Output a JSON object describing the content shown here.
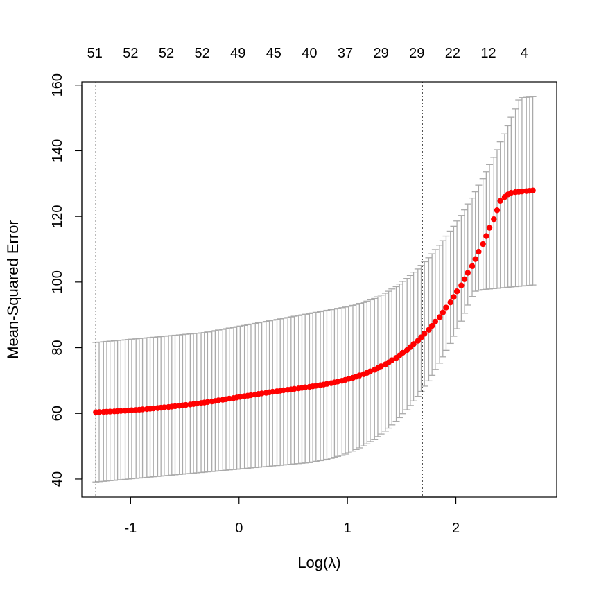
{
  "chart_data": {
    "type": "scatter",
    "title": "",
    "xlabel": "Log(λ)",
    "ylabel": "Mean-Squared Error",
    "xlim": [
      -1.45,
      2.93
    ],
    "ylim": [
      34.5,
      161
    ],
    "x_ticks": [
      -1,
      0,
      1,
      2
    ],
    "x_tick_labels": [
      "-1",
      "0",
      "1",
      "2"
    ],
    "y_ticks": [
      40,
      60,
      80,
      100,
      120,
      140,
      160
    ],
    "y_tick_labels": [
      "40",
      "60",
      "80",
      "100",
      "120",
      "140",
      "160"
    ],
    "top_axis": {
      "label": "",
      "ticks": [
        -1.33,
        -1.0,
        -0.67,
        -0.34,
        -0.01,
        0.32,
        0.65,
        0.98,
        1.31,
        1.64,
        1.97,
        2.3,
        2.63
      ],
      "tick_labels": [
        "51",
        "52",
        "52",
        "52",
        "49",
        "45",
        "40",
        "37",
        "29",
        "29",
        "22",
        "12",
        "4"
      ]
    },
    "reference_lines_x": [
      -1.32,
      1.69
    ],
    "point_color": "#ff0000",
    "errorbar_color": "#aaaaaa",
    "grid": false,
    "legend": "none",
    "series": [
      {
        "x": [
          -1.32,
          -1.29,
          -1.25,
          -1.22,
          -1.19,
          -1.15,
          -1.12,
          -1.09,
          -1.05,
          -1.02,
          -0.99,
          -0.95,
          -0.92,
          -0.89,
          -0.85,
          -0.82,
          -0.79,
          -0.75,
          -0.72,
          -0.69,
          -0.65,
          -0.62,
          -0.59,
          -0.55,
          -0.52,
          -0.49,
          -0.45,
          -0.42,
          -0.39,
          -0.35,
          -0.32,
          -0.29,
          -0.25,
          -0.22,
          -0.19,
          -0.15,
          -0.12,
          -0.09,
          -0.05,
          -0.02,
          0.01,
          0.05,
          0.08,
          0.11,
          0.15,
          0.18,
          0.21,
          0.25,
          0.28,
          0.31,
          0.35,
          0.38,
          0.41,
          0.45,
          0.48,
          0.51,
          0.55,
          0.58,
          0.61,
          0.65,
          0.68,
          0.71,
          0.75,
          0.78,
          0.81,
          0.85,
          0.88,
          0.91,
          0.95,
          0.98,
          1.01,
          1.05,
          1.08,
          1.11,
          1.15,
          1.18,
          1.21,
          1.25,
          1.28,
          1.31,
          1.35,
          1.38,
          1.41,
          1.45,
          1.48,
          1.51,
          1.55,
          1.58,
          1.61,
          1.65,
          1.68,
          1.71,
          1.75,
          1.78,
          1.81,
          1.85,
          1.88,
          1.91,
          1.95,
          1.98,
          2.01,
          2.05,
          2.08,
          2.11,
          2.15,
          2.18,
          2.21,
          2.25,
          2.28,
          2.31,
          2.35,
          2.38,
          2.41,
          2.45,
          2.48,
          2.51,
          2.55,
          2.58,
          2.61,
          2.65,
          2.68,
          2.71
        ],
        "y": [
          60.36,
          60.41,
          60.46,
          60.51,
          60.56,
          60.62,
          60.68,
          60.75,
          60.82,
          60.89,
          60.97,
          61.05,
          61.13,
          61.22,
          61.31,
          61.41,
          61.51,
          61.61,
          61.72,
          61.83,
          61.94,
          62.06,
          62.18,
          62.31,
          62.44,
          62.57,
          62.71,
          62.85,
          63.0,
          63.15,
          63.3,
          63.46,
          63.62,
          63.79,
          63.96,
          64.13,
          64.31,
          64.49,
          64.67,
          64.85,
          65.03,
          65.21,
          65.39,
          65.57,
          65.75,
          65.92,
          66.09,
          66.26,
          66.42,
          66.58,
          66.73,
          66.88,
          67.03,
          67.18,
          67.33,
          67.47,
          67.62,
          67.77,
          67.92,
          68.08,
          68.24,
          68.41,
          68.59,
          68.78,
          68.98,
          69.2,
          69.43,
          69.67,
          69.93,
          70.21,
          70.51,
          70.83,
          71.17,
          71.54,
          71.93,
          72.35,
          72.8,
          73.28,
          73.79,
          74.34,
          74.92,
          75.54,
          76.2,
          76.9,
          77.65,
          78.44,
          79.28,
          80.17,
          81.11,
          82.1,
          83.15,
          84.26,
          85.43,
          86.66,
          87.95,
          89.31,
          90.74,
          92.24,
          93.81,
          95.45,
          97.17,
          98.97,
          100.85,
          102.82,
          104.87,
          107.01,
          109.24,
          111.57,
          113.99,
          116.51,
          119.14,
          121.88,
          124.73,
          125.9,
          126.7,
          127.2,
          127.4,
          127.5,
          127.6,
          127.7,
          127.8,
          127.9
        ],
        "err_lower": [
          39.1,
          39.2,
          39.3,
          39.4,
          39.5,
          39.6,
          39.7,
          39.8,
          39.9,
          40.0,
          40.1,
          40.2,
          40.3,
          40.4,
          40.5,
          40.6,
          40.7,
          40.8,
          40.9,
          41.0,
          41.1,
          41.2,
          41.3,
          41.4,
          41.5,
          41.6,
          41.7,
          41.8,
          41.9,
          42.0,
          42.1,
          42.2,
          42.3,
          42.4,
          42.5,
          42.6,
          42.7,
          42.8,
          42.9,
          43.0,
          43.1,
          43.2,
          43.3,
          43.4,
          43.5,
          43.6,
          43.7,
          43.8,
          43.9,
          44.0,
          44.1,
          44.2,
          44.3,
          44.4,
          44.5,
          44.6,
          44.7,
          44.8,
          44.9,
          45.0,
          45.2,
          45.4,
          45.6,
          45.8,
          46.0,
          46.3,
          46.6,
          46.9,
          47.2,
          47.6,
          48.0,
          48.5,
          49.0,
          49.5,
          50.1,
          50.7,
          51.4,
          52.1,
          52.9,
          53.7,
          54.6,
          55.5,
          56.5,
          57.6,
          58.7,
          59.9,
          61.1,
          62.4,
          63.8,
          65.2,
          66.7,
          68.3,
          69.9,
          71.6,
          73.4,
          75.3,
          77.2,
          79.2,
          81.3,
          83.5,
          85.8,
          88.1,
          90.5,
          93.0,
          95.6,
          97.2,
          97.5,
          97.7,
          97.8,
          97.9,
          98.0,
          98.1,
          98.2,
          98.3,
          98.4,
          98.5,
          98.6,
          98.7,
          98.8,
          98.9,
          99.0,
          99.1
        ],
        "err_upper": [
          81.6,
          81.7,
          81.8,
          81.9,
          82.0,
          82.1,
          82.2,
          82.3,
          82.4,
          82.5,
          82.6,
          82.7,
          82.8,
          82.9,
          83.0,
          83.1,
          83.2,
          83.3,
          83.4,
          83.5,
          83.6,
          83.7,
          83.8,
          83.9,
          84.0,
          84.1,
          84.2,
          84.3,
          84.4,
          84.5,
          84.6,
          84.8,
          85.0,
          85.2,
          85.4,
          85.6,
          85.8,
          86.0,
          86.2,
          86.4,
          86.6,
          86.8,
          87.0,
          87.2,
          87.4,
          87.6,
          87.8,
          88.0,
          88.2,
          88.4,
          88.6,
          88.8,
          89.0,
          89.2,
          89.4,
          89.6,
          89.8,
          90.0,
          90.2,
          90.4,
          90.6,
          90.8,
          91.0,
          91.2,
          91.4,
          91.6,
          91.8,
          92.0,
          92.2,
          92.4,
          92.6,
          92.9,
          93.2,
          93.5,
          93.8,
          94.2,
          94.6,
          95.0,
          95.5,
          96.0,
          96.6,
          97.2,
          97.9,
          98.6,
          99.4,
          100.2,
          101.1,
          102.0,
          103.0,
          104.0,
          105.1,
          106.2,
          107.4,
          108.6,
          109.9,
          111.2,
          112.6,
          114.0,
          115.5,
          117.0,
          118.6,
          120.3,
          122.0,
          123.8,
          125.6,
          127.5,
          129.5,
          131.5,
          133.6,
          135.8,
          138.0,
          140.3,
          142.7,
          145.1,
          147.6,
          150.2,
          152.8,
          155.5,
          156.2,
          156.3,
          156.4,
          156.5
        ]
      }
    ]
  }
}
